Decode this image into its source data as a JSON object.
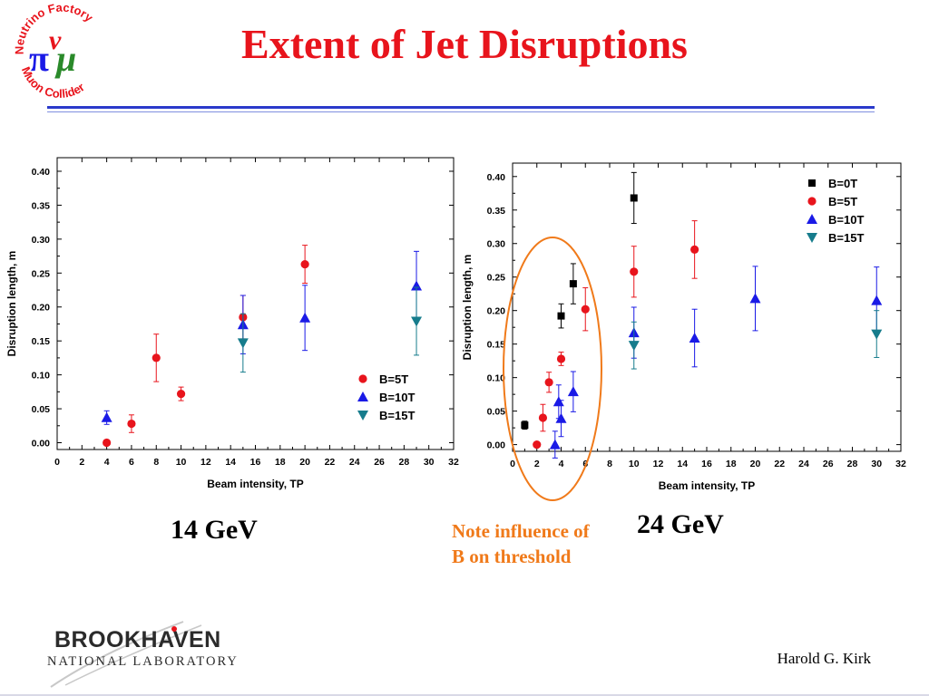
{
  "slide": {
    "title": "Extent of Jet Disruptions",
    "caption_left": "14 GeV",
    "caption_right": "24 GeV",
    "note_line1": "Note influence of",
    "note_line2": "B on threshold",
    "author": "Harold G. Kirk",
    "logo_nf_top": "Neutrino Factory",
    "logo_nf_bottom": "Muon Collider",
    "logo_bnl_line1": "BROOKHAVEN",
    "logo_bnl_line2": "NATIONAL LABORATORY",
    "colors": {
      "title": "#e8141c",
      "note": "#f07a1a",
      "rule": "#2b3acb",
      "highlight_ellipse": "#f07a1a"
    }
  },
  "chart_data": [
    {
      "type": "scatter",
      "xlabel": "Beam intensity, TP",
      "ylabel": "Disruption length, m",
      "xlim": [
        0,
        32
      ],
      "ylim": [
        -0.01,
        0.42
      ],
      "xticks": [
        "0",
        "2",
        "4",
        "6",
        "8",
        "10",
        "12",
        "14",
        "16",
        "18",
        "20",
        "22",
        "24",
        "26",
        "28",
        "30",
        "32"
      ],
      "yticks": [
        "0.00",
        "0.05",
        "0.10",
        "0.15",
        "0.20",
        "0.25",
        "0.30",
        "0.35",
        "0.40"
      ],
      "legend_position": "bottom-right",
      "series": [
        {
          "name": "B=5T",
          "marker": "circle",
          "color": "#e8141c",
          "points": [
            {
              "x": 4,
              "y": 0.0,
              "err": 0.0
            },
            {
              "x": 6,
              "y": 0.028,
              "err": 0.013
            },
            {
              "x": 8,
              "y": 0.125,
              "err": 0.035
            },
            {
              "x": 10,
              "y": 0.072,
              "err": 0.01
            },
            {
              "x": 15,
              "y": 0.185,
              "err": 0.032
            },
            {
              "x": 20,
              "y": 0.263,
              "err": 0.028
            }
          ]
        },
        {
          "name": "B=10T",
          "marker": "triangle-up",
          "color": "#1a1ae6",
          "points": [
            {
              "x": 4,
              "y": 0.037,
              "err": 0.01
            },
            {
              "x": 15,
              "y": 0.174,
              "err": 0.043
            },
            {
              "x": 20,
              "y": 0.184,
              "err": 0.048
            },
            {
              "x": 29,
              "y": 0.231,
              "err": 0.051
            }
          ]
        },
        {
          "name": "B=15T",
          "marker": "triangle-down",
          "color": "#167c8c",
          "points": [
            {
              "x": 15,
              "y": 0.147,
              "err": 0.043
            },
            {
              "x": 29,
              "y": 0.179,
              "err": 0.05
            }
          ]
        }
      ]
    },
    {
      "type": "scatter",
      "xlabel": "Beam intensity, TP",
      "ylabel": "Disruption length, m",
      "xlim": [
        0,
        32
      ],
      "ylim": [
        -0.01,
        0.42
      ],
      "xticks": [
        "0",
        "2",
        "4",
        "6",
        "8",
        "10",
        "12",
        "14",
        "16",
        "18",
        "20",
        "22",
        "24",
        "26",
        "28",
        "30",
        "32"
      ],
      "yticks": [
        "0.00",
        "0.05",
        "0.10",
        "0.15",
        "0.20",
        "0.25",
        "0.30",
        "0.35",
        "0.40"
      ],
      "legend_position": "top-right",
      "series": [
        {
          "name": "B=0T",
          "marker": "square",
          "color": "#000000",
          "points": [
            {
              "x": 1,
              "y": 0.029,
              "err": 0.006
            },
            {
              "x": 4,
              "y": 0.192,
              "err": 0.018
            },
            {
              "x": 5,
              "y": 0.24,
              "err": 0.03
            },
            {
              "x": 10,
              "y": 0.368,
              "err": 0.038
            }
          ]
        },
        {
          "name": "B=5T",
          "marker": "circle",
          "color": "#e8141c",
          "points": [
            {
              "x": 2,
              "y": 0.0,
              "err": 0.0
            },
            {
              "x": 2.5,
              "y": 0.04,
              "err": 0.02
            },
            {
              "x": 3,
              "y": 0.093,
              "err": 0.015
            },
            {
              "x": 4,
              "y": 0.128,
              "err": 0.01
            },
            {
              "x": 6,
              "y": 0.202,
              "err": 0.032
            },
            {
              "x": 10,
              "y": 0.258,
              "err": 0.038
            },
            {
              "x": 15,
              "y": 0.291,
              "err": 0.043
            }
          ]
        },
        {
          "name": "B=10T",
          "marker": "triangle-up",
          "color": "#1a1ae6",
          "points": [
            {
              "x": 3.5,
              "y": 0.0,
              "err": 0.02
            },
            {
              "x": 3.8,
              "y": 0.064,
              "err": 0.025
            },
            {
              "x": 4,
              "y": 0.039,
              "err": 0.027
            },
            {
              "x": 5,
              "y": 0.079,
              "err": 0.03
            },
            {
              "x": 10,
              "y": 0.167,
              "err": 0.038
            },
            {
              "x": 15,
              "y": 0.159,
              "err": 0.043
            },
            {
              "x": 20,
              "y": 0.218,
              "err": 0.048
            },
            {
              "x": 30,
              "y": 0.215,
              "err": 0.05
            }
          ]
        },
        {
          "name": "B=15T",
          "marker": "triangle-down",
          "color": "#167c8c",
          "points": [
            {
              "x": 10,
              "y": 0.148,
              "err": 0.035
            },
            {
              "x": 30,
              "y": 0.165,
              "err": 0.035
            }
          ]
        }
      ]
    }
  ]
}
